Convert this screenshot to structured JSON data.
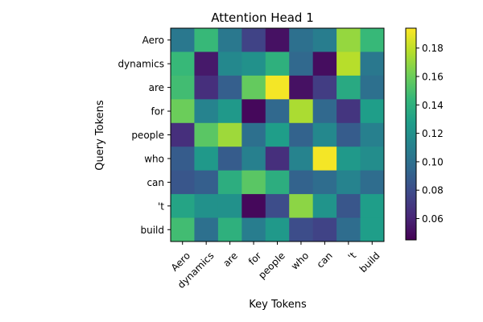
{
  "chart_data": {
    "type": "heatmap",
    "title": "Attention Head 1",
    "xlabel": "Key Tokens",
    "ylabel": "Query Tokens",
    "x_tokens": [
      "Aero",
      "dynamics",
      "are",
      "for",
      "people",
      "who",
      "can",
      "'t",
      "build"
    ],
    "y_tokens": [
      "Aero",
      "dynamics",
      "are",
      "for",
      "people",
      "who",
      "can",
      "'t",
      "build"
    ],
    "values": [
      [
        0.105,
        0.145,
        0.105,
        0.075,
        0.052,
        0.1,
        0.108,
        0.17,
        0.145
      ],
      [
        0.145,
        0.055,
        0.115,
        0.12,
        0.14,
        0.095,
        0.05,
        0.178,
        0.105
      ],
      [
        0.148,
        0.065,
        0.09,
        0.158,
        0.192,
        0.052,
        0.072,
        0.135,
        0.1
      ],
      [
        0.16,
        0.112,
        0.125,
        0.048,
        0.095,
        0.175,
        0.095,
        0.068,
        0.128
      ],
      [
        0.065,
        0.155,
        0.172,
        0.1,
        0.128,
        0.092,
        0.115,
        0.088,
        0.11
      ],
      [
        0.088,
        0.125,
        0.088,
        0.11,
        0.065,
        0.112,
        0.192,
        0.125,
        0.118
      ],
      [
        0.085,
        0.09,
        0.138,
        0.155,
        0.138,
        0.092,
        0.098,
        0.112,
        0.098
      ],
      [
        0.132,
        0.12,
        0.12,
        0.048,
        0.08,
        0.168,
        0.122,
        0.085,
        0.128
      ],
      [
        0.148,
        0.1,
        0.14,
        0.108,
        0.125,
        0.08,
        0.075,
        0.098,
        0.128
      ]
    ],
    "colorbar": {
      "colormap": "viridis",
      "vmin": 0.045,
      "vmax": 0.194,
      "ticks": [
        0.06,
        0.08,
        0.1,
        0.12,
        0.14,
        0.16,
        0.18
      ],
      "tick_labels": [
        "0.06",
        "0.08",
        "0.10",
        "0.12",
        "0.14",
        "0.16",
        "0.18"
      ]
    },
    "x_tick_rotation": 45
  }
}
